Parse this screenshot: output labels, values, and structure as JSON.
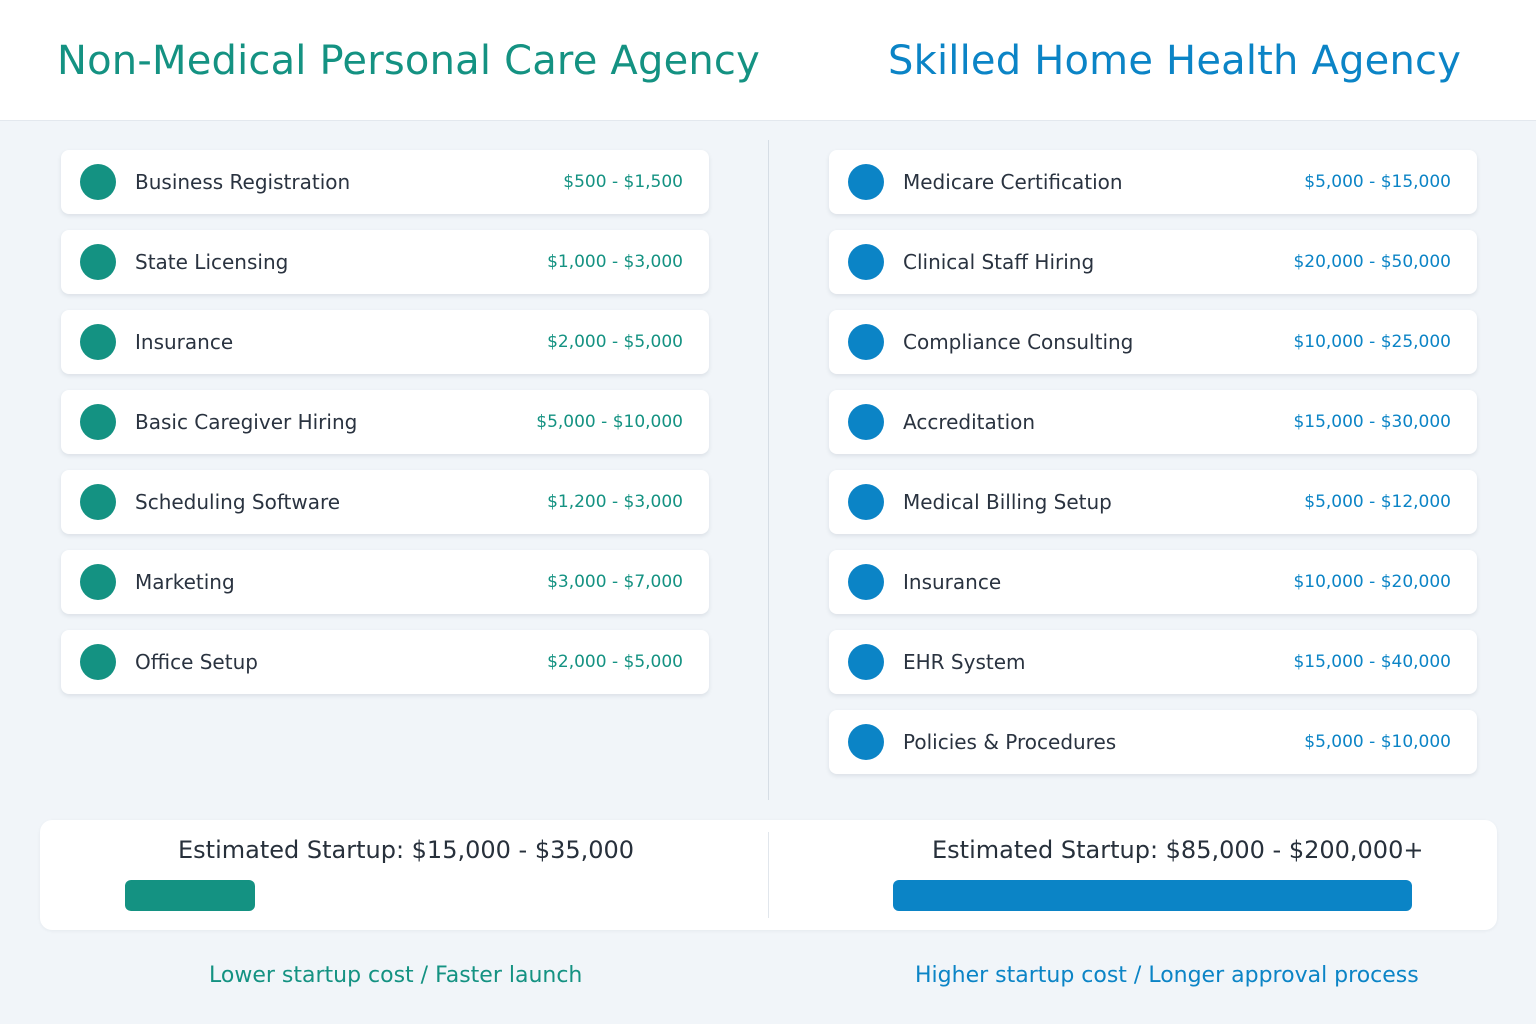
{
  "left": {
    "title": "Non-Medical Personal Care Agency",
    "accent_color": "#149282",
    "items": [
      {
        "label": "Business Registration",
        "cost": "$500 - $1,500"
      },
      {
        "label": "State Licensing",
        "cost": "$1,000 - $3,000"
      },
      {
        "label": "Insurance",
        "cost": "$2,000 - $5,000"
      },
      {
        "label": "Basic Caregiver Hiring",
        "cost": "$5,000 - $10,000"
      },
      {
        "label": "Scheduling Software",
        "cost": "$1,200 - $3,000"
      },
      {
        "label": "Marketing",
        "cost": "$3,000 - $7,000"
      },
      {
        "label": "Office Setup",
        "cost": "$2,000 - $5,000"
      }
    ],
    "estimate": "Estimated Startup: $15,000 - $35,000",
    "bar_fraction": 0.25,
    "tagline": "Lower startup cost / Faster launch"
  },
  "right": {
    "title": "Skilled Home Health Agency",
    "accent_color": "#0b84c6",
    "items": [
      {
        "label": "Medicare Certification",
        "cost": "$5,000 - $15,000"
      },
      {
        "label": "Clinical Staff Hiring",
        "cost": "$20,000 - $50,000"
      },
      {
        "label": "Compliance Consulting",
        "cost": "$10,000 - $25,000"
      },
      {
        "label": "Accreditation",
        "cost": "$15,000 - $30,000"
      },
      {
        "label": "Medical Billing Setup",
        "cost": "$5,000 - $12,000"
      },
      {
        "label": "Insurance",
        "cost": "$10,000 - $20,000"
      },
      {
        "label": "EHR System",
        "cost": "$15,000 - $40,000"
      },
      {
        "label": "Policies & Procedures",
        "cost": "$5,000 - $10,000"
      }
    ],
    "estimate": "Estimated Startup: $85,000 - $200,000+",
    "bar_fraction": 1.0,
    "tagline": "Higher startup cost / Longer approval process"
  }
}
